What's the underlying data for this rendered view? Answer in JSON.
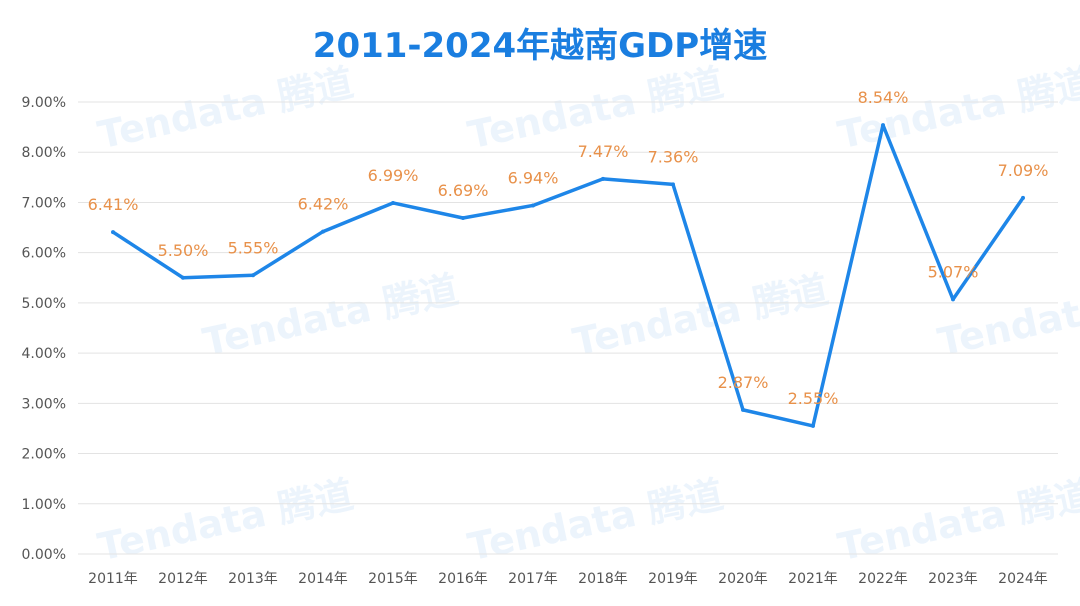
{
  "chart_data": {
    "type": "line",
    "title": "2011-2024年越南GDP增速",
    "categories": [
      "2011年",
      "2012年",
      "2013年",
      "2014年",
      "2015年",
      "2016年",
      "2017年",
      "2018年",
      "2019年",
      "2020年",
      "2021年",
      "2022年",
      "2023年",
      "2024年"
    ],
    "series": [
      {
        "values": [
          6.41,
          5.5,
          5.55,
          6.42,
          6.99,
          6.69,
          6.94,
          7.47,
          7.36,
          2.87,
          2.55,
          8.54,
          5.07,
          7.09
        ]
      }
    ],
    "data_labels": [
      "6.41%",
      "5.50%",
      "5.55%",
      "6.42%",
      "6.99%",
      "6.69%",
      "6.94%",
      "7.47%",
      "7.36%",
      "2.87%",
      "2.55%",
      "8.54%",
      "5.07%",
      "7.09%"
    ],
    "y_ticks": [
      "0.00%",
      "1.00%",
      "2.00%",
      "3.00%",
      "4.00%",
      "5.00%",
      "6.00%",
      "7.00%",
      "8.00%",
      "9.00%"
    ],
    "ylim": [
      0,
      9
    ],
    "xlabel": "",
    "ylabel": "",
    "grid": true,
    "legend": "none",
    "colors": {
      "line": "#1e86e8",
      "label": "#e8914a",
      "title": "#1a7ee0",
      "axis_text": "#555555",
      "grid": "#e3e3e3"
    }
  },
  "watermark": "Tendata 腾道"
}
